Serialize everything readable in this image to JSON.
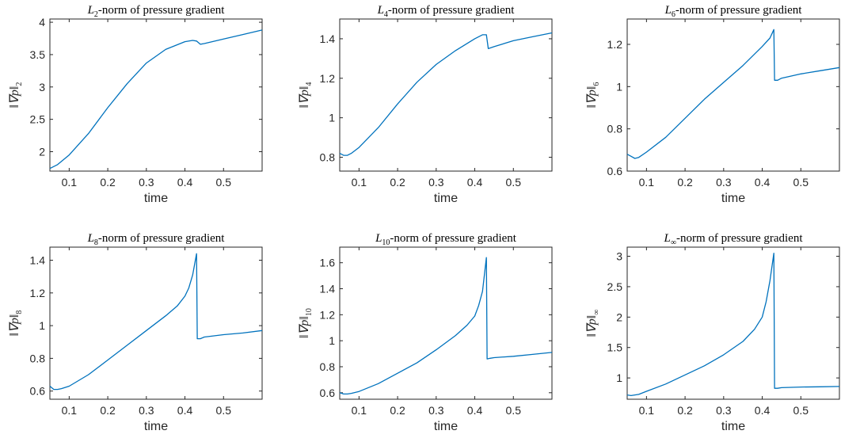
{
  "figure": {
    "line_color": "#0072bd",
    "axis_color": "#262626"
  },
  "chart_data": [
    {
      "type": "line",
      "title": "L₂-norm of pressure gradient",
      "title_base": "L",
      "title_sub": "2",
      "title_rest": "-norm of pressure gradient",
      "xlabel": "time",
      "ylabel": "‖∇p‖₂",
      "ylabel_base": "‖∇p‖",
      "ylabel_sub": "2",
      "xlim": [
        0.05,
        0.6
      ],
      "ylim": [
        1.7,
        4.05
      ],
      "xticks": [
        "0.1",
        "0.2",
        "0.3",
        "0.4",
        "0.5"
      ],
      "yticks": [
        "2",
        "2.5",
        "3",
        "3.5",
        "4"
      ],
      "series": [
        {
          "x": [
            0.05,
            0.07,
            0.1,
            0.15,
            0.2,
            0.25,
            0.3,
            0.35,
            0.4,
            0.42,
            0.43,
            0.44,
            0.45,
            0.5,
            0.55,
            0.6
          ],
          "y": [
            1.74,
            1.8,
            1.95,
            2.28,
            2.68,
            3.05,
            3.37,
            3.58,
            3.7,
            3.72,
            3.71,
            3.66,
            3.67,
            3.74,
            3.81,
            3.88
          ]
        }
      ]
    },
    {
      "type": "line",
      "title": "L₄-norm of pressure gradient",
      "title_base": "L",
      "title_sub": "4",
      "title_rest": "-norm of pressure gradient",
      "xlabel": "time",
      "ylabel": "‖∇p‖₄",
      "ylabel_base": "‖∇p‖",
      "ylabel_sub": "4",
      "xlim": [
        0.05,
        0.6
      ],
      "ylim": [
        0.73,
        1.5
      ],
      "xticks": [
        "0.1",
        "0.2",
        "0.3",
        "0.4",
        "0.5"
      ],
      "yticks": [
        "0.8",
        "1",
        "1.2",
        "1.4"
      ],
      "series": [
        {
          "x": [
            0.05,
            0.06,
            0.07,
            0.08,
            0.1,
            0.15,
            0.2,
            0.25,
            0.3,
            0.35,
            0.4,
            0.42,
            0.43,
            0.435,
            0.45,
            0.5,
            0.55,
            0.6
          ],
          "y": [
            0.82,
            0.81,
            0.81,
            0.82,
            0.85,
            0.95,
            1.07,
            1.18,
            1.27,
            1.34,
            1.4,
            1.42,
            1.42,
            1.35,
            1.36,
            1.39,
            1.41,
            1.43
          ]
        }
      ]
    },
    {
      "type": "line",
      "title": "L₆-norm of pressure gradient",
      "title_base": "L",
      "title_sub": "6",
      "title_rest": "-norm of pressure gradient",
      "xlabel": "time",
      "ylabel": "‖∇p‖₆",
      "ylabel_base": "‖∇p‖",
      "ylabel_sub": "6",
      "xlim": [
        0.05,
        0.6
      ],
      "ylim": [
        0.6,
        1.32
      ],
      "xticks": [
        "0.1",
        "0.2",
        "0.3",
        "0.4",
        "0.5"
      ],
      "yticks": [
        "0.6",
        "0.8",
        "1",
        "1.2"
      ],
      "series": [
        {
          "x": [
            0.05,
            0.06,
            0.07,
            0.08,
            0.1,
            0.15,
            0.2,
            0.25,
            0.3,
            0.35,
            0.4,
            0.42,
            0.43,
            0.432,
            0.44,
            0.45,
            0.5,
            0.55,
            0.6
          ],
          "y": [
            0.68,
            0.67,
            0.66,
            0.665,
            0.69,
            0.76,
            0.85,
            0.94,
            1.02,
            1.1,
            1.19,
            1.23,
            1.27,
            1.03,
            1.03,
            1.04,
            1.06,
            1.075,
            1.09
          ]
        }
      ]
    },
    {
      "type": "line",
      "title": "L₈-norm of pressure gradient",
      "title_base": "L",
      "title_sub": "8",
      "title_rest": "-norm of pressure gradient",
      "xlabel": "time",
      "ylabel": "‖∇p‖₈",
      "ylabel_base": "‖∇p‖",
      "ylabel_sub": "8",
      "xlim": [
        0.05,
        0.6
      ],
      "ylim": [
        0.55,
        1.48
      ],
      "xticks": [
        "0.1",
        "0.2",
        "0.3",
        "0.4",
        "0.5"
      ],
      "yticks": [
        "0.6",
        "0.8",
        "1",
        "1.2",
        "1.4"
      ],
      "series": [
        {
          "x": [
            0.05,
            0.06,
            0.07,
            0.08,
            0.1,
            0.15,
            0.2,
            0.25,
            0.3,
            0.35,
            0.38,
            0.4,
            0.41,
            0.42,
            0.43,
            0.432,
            0.44,
            0.45,
            0.5,
            0.55,
            0.6
          ],
          "y": [
            0.63,
            0.61,
            0.61,
            0.615,
            0.63,
            0.7,
            0.79,
            0.88,
            0.97,
            1.06,
            1.12,
            1.18,
            1.23,
            1.31,
            1.44,
            0.92,
            0.92,
            0.93,
            0.945,
            0.955,
            0.97
          ]
        }
      ]
    },
    {
      "type": "line",
      "title": "L₁₀-norm of pressure gradient",
      "title_base": "L",
      "title_sub": "10",
      "title_rest": "-norm of pressure gradient",
      "xlabel": "time",
      "ylabel": "‖∇p‖₁₀",
      "ylabel_base": "‖∇p‖",
      "ylabel_sub": "10",
      "xlim": [
        0.05,
        0.6
      ],
      "ylim": [
        0.55,
        1.72
      ],
      "xticks": [
        "0.1",
        "0.2",
        "0.3",
        "0.4",
        "0.5"
      ],
      "yticks": [
        "0.6",
        "0.8",
        "1",
        "1.2",
        "1.4",
        "1.6"
      ],
      "series": [
        {
          "x": [
            0.05,
            0.06,
            0.07,
            0.08,
            0.1,
            0.15,
            0.2,
            0.25,
            0.3,
            0.35,
            0.38,
            0.4,
            0.41,
            0.42,
            0.43,
            0.432,
            0.44,
            0.45,
            0.5,
            0.55,
            0.6
          ],
          "y": [
            0.6,
            0.59,
            0.59,
            0.595,
            0.61,
            0.67,
            0.75,
            0.83,
            0.93,
            1.04,
            1.12,
            1.19,
            1.27,
            1.38,
            1.64,
            0.86,
            0.865,
            0.87,
            0.88,
            0.895,
            0.91
          ]
        }
      ]
    },
    {
      "type": "line",
      "title": "L∞-norm of pressure gradient",
      "title_base": "L",
      "title_sub": "∞",
      "title_rest": "-norm of pressure gradient",
      "xlabel": "time",
      "ylabel": "‖∇p‖∞",
      "ylabel_base": "‖∇p‖",
      "ylabel_sub": "∞",
      "xlim": [
        0.05,
        0.6
      ],
      "ylim": [
        0.65,
        3.15
      ],
      "xticks": [
        "0.1",
        "0.2",
        "0.3",
        "0.4",
        "0.5"
      ],
      "yticks": [
        "1",
        "1.5",
        "2",
        "2.5",
        "3"
      ],
      "series": [
        {
          "x": [
            0.05,
            0.06,
            0.07,
            0.08,
            0.1,
            0.15,
            0.2,
            0.25,
            0.3,
            0.35,
            0.38,
            0.4,
            0.41,
            0.42,
            0.43,
            0.432,
            0.44,
            0.45,
            0.5,
            0.55,
            0.6
          ],
          "y": [
            0.72,
            0.71,
            0.72,
            0.73,
            0.78,
            0.9,
            1.05,
            1.2,
            1.38,
            1.6,
            1.8,
            2.0,
            2.25,
            2.6,
            3.05,
            0.83,
            0.83,
            0.84,
            0.85,
            0.855,
            0.86
          ]
        }
      ]
    }
  ]
}
